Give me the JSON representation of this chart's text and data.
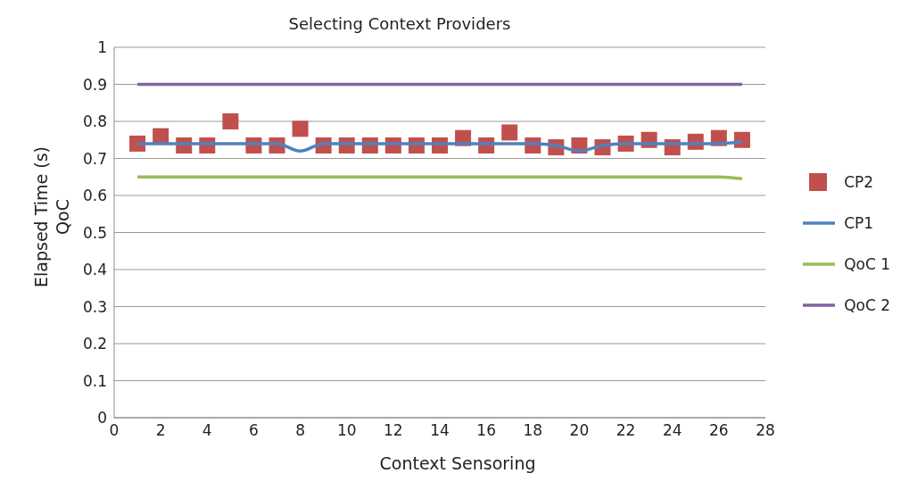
{
  "chart_data": {
    "type": "line",
    "title": "Selecting Context Providers",
    "xlabel": "Context Sensoring",
    "ylabel": "Elapsed Time (s)\nQoC",
    "x": [
      1,
      2,
      3,
      4,
      5,
      6,
      7,
      8,
      9,
      10,
      11,
      12,
      13,
      14,
      15,
      16,
      17,
      18,
      19,
      20,
      21,
      22,
      23,
      24,
      25,
      26,
      27
    ],
    "series": [
      {
        "name": "CP2",
        "type": "scatter",
        "marker": "square",
        "color": "#c0504d",
        "values": [
          0.74,
          0.76,
          0.735,
          0.735,
          0.8,
          0.735,
          0.735,
          0.78,
          0.735,
          0.735,
          0.735,
          0.735,
          0.735,
          0.735,
          0.755,
          0.735,
          0.77,
          0.735,
          0.73,
          0.735,
          0.73,
          0.74,
          0.75,
          0.73,
          0.745,
          0.755,
          0.75
        ]
      },
      {
        "name": "CP1",
        "type": "line",
        "color": "#4f81bd",
        "values": [
          0.74,
          0.74,
          0.74,
          0.74,
          0.74,
          0.74,
          0.74,
          0.72,
          0.74,
          0.74,
          0.74,
          0.74,
          0.74,
          0.74,
          0.74,
          0.74,
          0.74,
          0.74,
          0.735,
          0.72,
          0.735,
          0.74,
          0.74,
          0.74,
          0.74,
          0.74,
          0.745
        ]
      },
      {
        "name": "QoC 1",
        "type": "line",
        "color": "#9bbb59",
        "values": [
          0.65,
          0.65,
          0.65,
          0.65,
          0.65,
          0.65,
          0.65,
          0.65,
          0.65,
          0.65,
          0.65,
          0.65,
          0.65,
          0.65,
          0.65,
          0.65,
          0.65,
          0.65,
          0.65,
          0.65,
          0.65,
          0.65,
          0.65,
          0.65,
          0.65,
          0.65,
          0.645
        ]
      },
      {
        "name": "QoC 2",
        "type": "line",
        "color": "#8064a2",
        "values": [
          0.9,
          0.9,
          0.9,
          0.9,
          0.9,
          0.9,
          0.9,
          0.9,
          0.9,
          0.9,
          0.9,
          0.9,
          0.9,
          0.9,
          0.9,
          0.9,
          0.9,
          0.9,
          0.9,
          0.9,
          0.9,
          0.9,
          0.9,
          0.9,
          0.9,
          0.9,
          0.9
        ]
      }
    ],
    "xlim": [
      0,
      28
    ],
    "xticks": [
      0,
      2,
      4,
      6,
      8,
      10,
      12,
      14,
      16,
      18,
      20,
      22,
      24,
      26,
      28
    ],
    "ylim": [
      0,
      1
    ],
    "yticks": [
      0,
      0.1,
      0.2,
      0.3,
      0.4,
      0.5,
      0.6,
      0.7,
      0.8,
      0.9,
      1
    ],
    "grid": "y",
    "legend": "right",
    "marker": "none",
    "line_style": "solid"
  }
}
